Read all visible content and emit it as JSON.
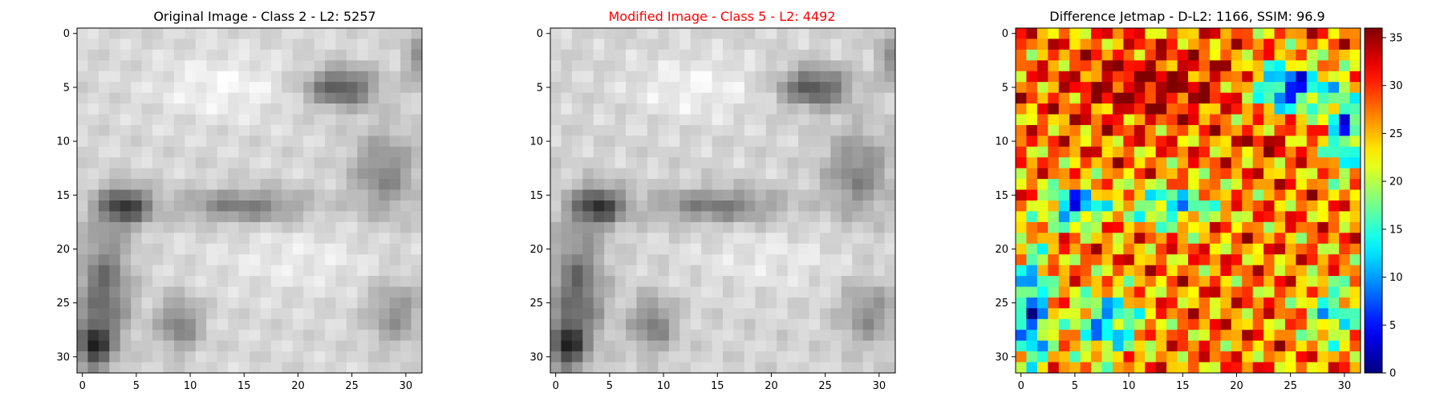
{
  "chart_data": [
    {
      "type": "heatmap",
      "title": "Original Image - Class 2 - L2: 5257",
      "title_color": "#000000",
      "colormap": "gray",
      "grid_size": 32,
      "x_ticks": [
        "0",
        "5",
        "10",
        "15",
        "20",
        "25",
        "30"
      ],
      "y_ticks": [
        "0",
        "5",
        "10",
        "15",
        "20",
        "25",
        "30"
      ],
      "xlim": [
        -0.5,
        31.5
      ],
      "ylim": [
        31.5,
        -0.5
      ]
    },
    {
      "type": "heatmap",
      "title": "Modified Image - Class 5 - L2: 4492",
      "title_color": "#ff0000",
      "colormap": "gray",
      "grid_size": 32,
      "x_ticks": [
        "0",
        "5",
        "10",
        "15",
        "20",
        "25",
        "30"
      ],
      "y_ticks": [
        "0",
        "5",
        "10",
        "15",
        "20",
        "25",
        "30"
      ],
      "xlim": [
        -0.5,
        31.5
      ],
      "ylim": [
        31.5,
        -0.5
      ]
    },
    {
      "type": "heatmap",
      "title": "Difference Jetmap - D-L2: 1166, SSIM: 96.9",
      "title_color": "#000000",
      "colormap": "jet",
      "grid_size": 32,
      "x_ticks": [
        "0",
        "5",
        "10",
        "15",
        "20",
        "25",
        "30"
      ],
      "y_ticks": [
        "0",
        "5",
        "10",
        "15",
        "20",
        "25",
        "30"
      ],
      "xlim": [
        -0.5,
        31.5
      ],
      "ylim": [
        31.5,
        -0.5
      ],
      "colorbar": {
        "range": [
          0,
          36
        ],
        "ticks": [
          "0",
          "5",
          "10",
          "15",
          "20",
          "25",
          "30",
          "35"
        ]
      }
    }
  ]
}
